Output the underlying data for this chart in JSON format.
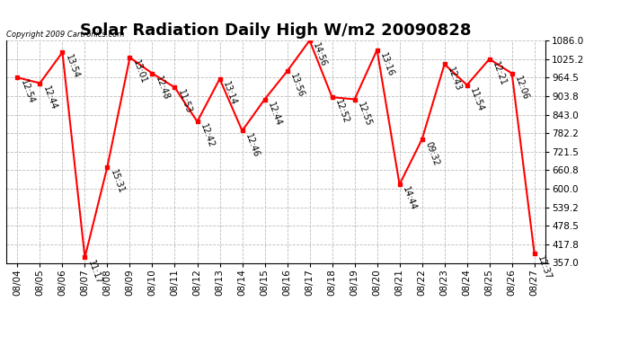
{
  "title": "Solar Radiation Daily High W/m2 20090828",
  "copyright": "Copyright 2009 Cartronics.com",
  "dates": [
    "08/04",
    "08/05",
    "08/06",
    "08/07",
    "08/08",
    "08/09",
    "08/10",
    "08/11",
    "08/12",
    "08/13",
    "08/14",
    "08/15",
    "08/16",
    "08/17",
    "08/18",
    "08/19",
    "08/20",
    "08/21",
    "08/22",
    "08/23",
    "08/24",
    "08/25",
    "08/26",
    "08/27"
  ],
  "values": [
    964.5,
    946.0,
    1047.0,
    375.0,
    672.0,
    1030.0,
    978.0,
    932.0,
    820.0,
    960.0,
    790.0,
    893.0,
    985.0,
    1086.0,
    900.0,
    893.0,
    1055.0,
    614.0,
    762.0,
    1008.0,
    940.0,
    1025.0,
    978.0,
    388.0
  ],
  "labels": [
    "12:54",
    "12:44",
    "13:54",
    "11:17",
    "15:31",
    "13:01",
    "12:48",
    "11:53",
    "12:42",
    "13:14",
    "12:46",
    "12:44",
    "13:56",
    "14:56",
    "12:52",
    "12:55",
    "13:16",
    "14:44",
    "09:32",
    "12:43",
    "11:54",
    "12:21",
    "12:06",
    "12:37"
  ],
  "ymin": 357.0,
  "ymax": 1086.0,
  "yticks": [
    357.0,
    417.8,
    478.5,
    539.2,
    600.0,
    660.8,
    721.5,
    782.2,
    843.0,
    903.8,
    964.5,
    1025.2,
    1086.0
  ],
  "line_color": "red",
  "marker_color": "red",
  "bg_color": "#ffffff",
  "grid_color": "#bbbbbb",
  "title_fontsize": 13,
  "label_fontsize": 7,
  "tick_fontsize": 7.5,
  "xtick_fontsize": 7.5
}
